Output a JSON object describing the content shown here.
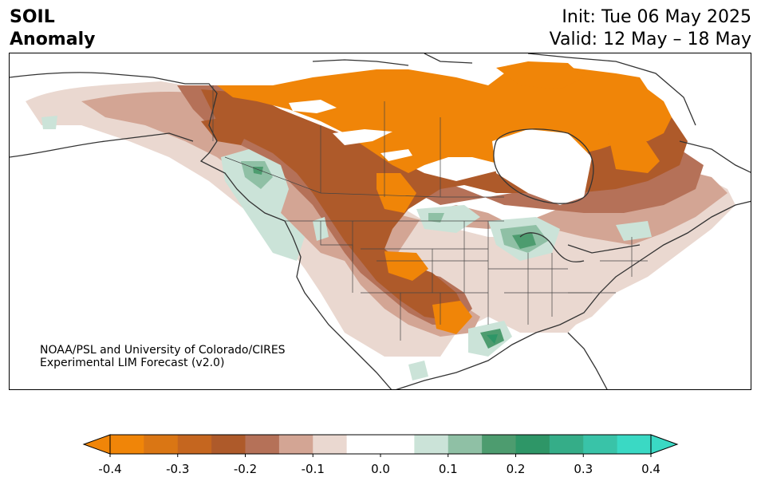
{
  "header": {
    "title_line1": "SOIL",
    "title_line2": "Anomaly",
    "init": "Init: Tue 06 May 2025",
    "valid": "Valid: 12 May – 18 May"
  },
  "credit": {
    "line1": "NOAA/PSL and University of Colorado/CIRES",
    "line2": "Experimental LIM Forecast (v2.0)"
  },
  "colorbar": {
    "ticks": [
      "-0.4",
      "-0.3",
      "-0.2",
      "-0.1",
      "0.0",
      "0.1",
      "0.2",
      "0.3",
      "0.4"
    ],
    "colors": [
      "#f08508",
      "#da7614",
      "#c5661f",
      "#ae5a2a",
      "#b57158",
      "#d3a594",
      "#ead8d0",
      "#ffffff",
      "#ffffff",
      "#cbe3d8",
      "#8fc0a5",
      "#4d9c6f",
      "#2e9667",
      "#35ad88",
      "#39c3a8",
      "#3ad9c4"
    ],
    "extend_low_color": "#f08508",
    "extend_high_color": "#3ad9c4"
  }
}
